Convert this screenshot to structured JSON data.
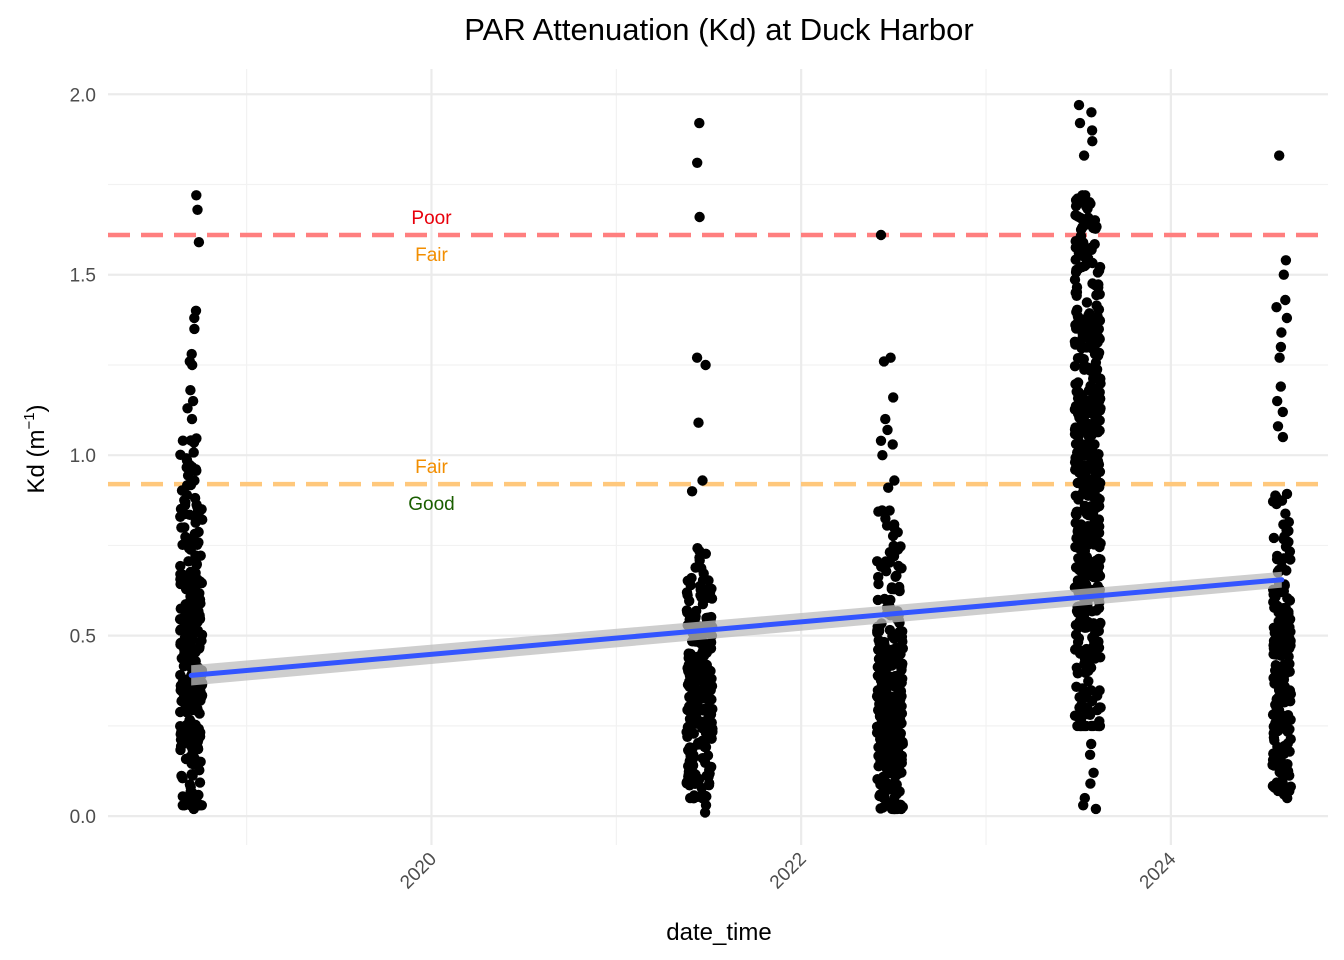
{
  "chart_data": {
    "type": "scatter",
    "title": "PAR Attenuation (Kd) at Duck Harbor",
    "xlabel": "date_time",
    "ylabel": "Kd (m",
    "ylabel_exponent": "−1",
    "ylabel_suffix": ")",
    "x_range": [
      2018.25,
      2024.85
    ],
    "ylim": [
      -0.08,
      2.07
    ],
    "x_ticks": [
      2020,
      2022,
      2024
    ],
    "x_tick_labels": [
      "2020",
      "2022",
      "2024"
    ],
    "y_ticks": [
      0.0,
      0.5,
      1.0,
      1.5,
      2.0
    ],
    "y_tick_labels": [
      "0.0",
      "0.5",
      "1.0",
      "1.5",
      "2.0"
    ],
    "grid": true,
    "colors": {
      "points": "#000000",
      "trend_line": "#3355ff",
      "confidence_band": "#bdbdbd",
      "poor_threshold": "#ff7f7f",
      "fair_threshold": "#ffc87c",
      "label_poor": "#e8000b",
      "label_fair": "#f28e00",
      "label_good": "#1a5e00"
    },
    "thresholds": [
      {
        "y": 1.61,
        "style": "dashed",
        "color": "#ff7f7f",
        "label_above": "Poor",
        "label_below": "Fair",
        "label_x": 2020
      },
      {
        "y": 0.92,
        "style": "dashed",
        "color": "#ffc87c",
        "label_above": "Fair",
        "label_below": "Good",
        "label_x": 2020
      }
    ],
    "annotations": [
      {
        "text": "Poor",
        "color": "#e8000b"
      },
      {
        "text": "Fair",
        "color": "#f28e00"
      },
      {
        "text": "Fair",
        "color": "#f28e00"
      },
      {
        "text": "Good",
        "color": "#1a5e00"
      }
    ],
    "trend": {
      "type": "linear",
      "x": [
        2018.7,
        2024.6
      ],
      "y": [
        0.39,
        0.655
      ],
      "ci_halfwidth": [
        0.028,
        0.022
      ]
    },
    "point_groups": [
      {
        "x_center": 2018.7,
        "x_spread": 0.06,
        "dense_min": 0.03,
        "dense_max": 1.08,
        "dense_count": 320,
        "dense_mean": 0.45,
        "outliers": [
          1.72,
          1.68,
          1.59,
          1.4,
          1.38,
          1.35,
          1.28,
          1.26,
          1.25,
          1.18,
          1.15,
          1.13,
          1.1,
          0.02,
          0.03,
          0.05
        ]
      },
      {
        "x_center": 2021.45,
        "x_spread": 0.07,
        "dense_min": 0.05,
        "dense_max": 0.75,
        "dense_count": 240,
        "dense_mean": 0.33,
        "outliers": [
          1.92,
          1.81,
          1.66,
          1.27,
          1.25,
          1.09,
          0.93,
          0.9,
          0.01,
          0.03
        ]
      },
      {
        "x_center": 2022.48,
        "x_spread": 0.07,
        "dense_min": 0.02,
        "dense_max": 0.85,
        "dense_count": 330,
        "dense_mean": 0.3,
        "outliers": [
          1.61,
          1.27,
          1.26,
          1.16,
          1.1,
          1.07,
          1.04,
          1.03,
          1.0,
          0.93,
          0.91
        ]
      },
      {
        "x_center": 2023.55,
        "x_spread": 0.07,
        "dense_min": 0.25,
        "dense_max": 1.72,
        "dense_count": 520,
        "dense_mean": 0.92,
        "outliers": [
          1.97,
          1.95,
          1.92,
          1.9,
          1.87,
          1.83,
          0.2,
          0.17,
          0.12,
          0.09,
          0.05,
          0.03,
          0.02
        ]
      },
      {
        "x_center": 2024.6,
        "x_spread": 0.05,
        "dense_min": 0.07,
        "dense_max": 0.9,
        "dense_count": 200,
        "dense_mean": 0.45,
        "outliers": [
          1.83,
          1.54,
          1.5,
          1.43,
          1.41,
          1.38,
          1.34,
          1.3,
          1.27,
          1.19,
          1.15,
          1.12,
          1.08,
          1.05,
          0.05,
          0.06
        ]
      }
    ]
  }
}
